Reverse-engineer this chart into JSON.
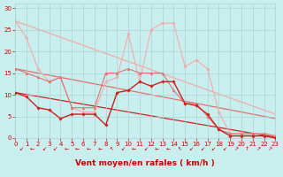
{
  "background_color": "#c8eeee",
  "grid_color": "#aad4d4",
  "xlabel": "Vent moyen/en rafales ( km/h )",
  "xlabel_color": "#cc0000",
  "xlabel_fontsize": 6.5,
  "tick_color": "#cc0000",
  "tick_fontsize": 5.0,
  "ylim": [
    -4,
    31
  ],
  "ylim_plot": [
    0,
    31
  ],
  "xlim": [
    0,
    23
  ],
  "yticks": [
    0,
    5,
    10,
    15,
    20,
    25,
    30
  ],
  "xticks": [
    0,
    1,
    2,
    3,
    4,
    5,
    6,
    7,
    8,
    9,
    10,
    11,
    12,
    13,
    14,
    15,
    16,
    17,
    18,
    19,
    20,
    21,
    22,
    23
  ],
  "trend_lines": [
    {
      "x": [
        0,
        23
      ],
      "y": [
        27,
        5.5
      ],
      "color": "#f5aaaa",
      "lw": 0.9
    },
    {
      "x": [
        0,
        23
      ],
      "y": [
        16,
        4.5
      ],
      "color": "#e07070",
      "lw": 0.9
    },
    {
      "x": [
        0,
        23
      ],
      "y": [
        10.5,
        0.2
      ],
      "color": "#cc2222",
      "lw": 0.9
    }
  ],
  "series": [
    {
      "x": [
        0,
        1,
        2,
        3,
        4,
        5,
        6,
        7,
        8,
        9,
        10,
        11,
        12,
        13,
        14,
        15,
        16,
        17,
        18,
        19,
        20,
        21,
        22,
        23
      ],
      "y": [
        27,
        23,
        16,
        13,
        14,
        7,
        6,
        6,
        13,
        14,
        24,
        13,
        25,
        26.5,
        26.5,
        16.5,
        18,
        16,
        6,
        1,
        1,
        1,
        1,
        0.5
      ],
      "color": "#f5aaaa",
      "lw": 0.8,
      "marker": "D",
      "ms": 1.8,
      "zorder": 2
    },
    {
      "x": [
        0,
        1,
        2,
        3,
        4,
        5,
        6,
        7,
        8,
        9,
        10,
        11,
        12,
        13,
        14,
        15,
        16,
        17,
        18,
        19,
        20,
        21,
        22,
        23
      ],
      "y": [
        16,
        15,
        14,
        13,
        14,
        7,
        7,
        7,
        15,
        15,
        16,
        15,
        15,
        15,
        11,
        8,
        8,
        5,
        2,
        1,
        1,
        1,
        1,
        0.5
      ],
      "color": "#e07070",
      "lw": 0.8,
      "marker": "^",
      "ms": 2.0,
      "zorder": 3
    },
    {
      "x": [
        0,
        1,
        2,
        3,
        4,
        5,
        6,
        7,
        8,
        9,
        10,
        11,
        12,
        13,
        14,
        15,
        16,
        17,
        18,
        19,
        20,
        21,
        22,
        23
      ],
      "y": [
        10.5,
        9.5,
        7,
        6.5,
        4.5,
        5.5,
        5.5,
        5.5,
        3.0,
        10.5,
        11,
        13,
        12,
        13,
        13,
        8,
        7.5,
        5.5,
        2,
        0.5,
        0.5,
        0.5,
        0.5,
        0
      ],
      "color": "#cc2222",
      "lw": 1.0,
      "marker": "D",
      "ms": 1.8,
      "zorder": 4
    }
  ],
  "wind_symbols": [
    "↙",
    "←",
    "↙",
    "↙",
    "←",
    "←",
    "←",
    "←",
    "↖",
    "↙",
    "←",
    "↙",
    "←",
    "←",
    "↖",
    "↙",
    "↙",
    "↙",
    "↙",
    "↗",
    "↑",
    "↗",
    "↗"
  ]
}
